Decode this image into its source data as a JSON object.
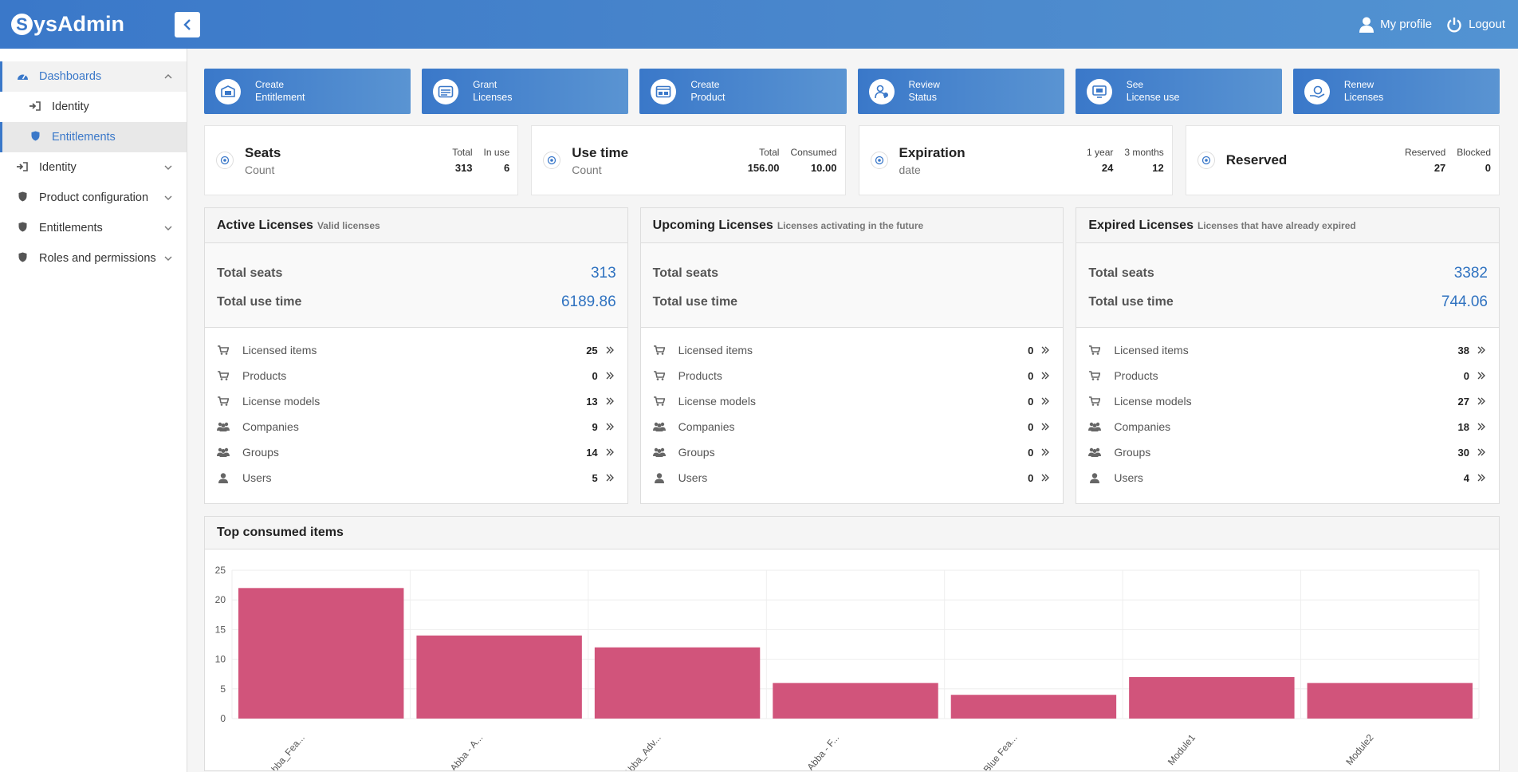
{
  "brand": {
    "letter": "S",
    "rest": "ysAdmin"
  },
  "header": {
    "my_profile": "My profile",
    "logout": "Logout"
  },
  "sidebar": {
    "items": [
      {
        "label": "Dashboards"
      },
      {
        "label": "Identity"
      },
      {
        "label": "Entitlements"
      },
      {
        "label": "Identity"
      },
      {
        "label": "Product configuration"
      },
      {
        "label": "Entitlements"
      },
      {
        "label": "Roles and permissions"
      }
    ]
  },
  "quick_actions": [
    {
      "line1": "Create",
      "line2": "Entitlement"
    },
    {
      "line1": "Grant",
      "line2": "Licenses"
    },
    {
      "line1": "Create",
      "line2": "Product"
    },
    {
      "line1": "Review",
      "line2": "Status"
    },
    {
      "line1": "See",
      "line2": "License use"
    },
    {
      "line1": "Renew",
      "line2": "Licenses"
    }
  ],
  "stats": [
    {
      "title": "Seats",
      "sub": "Count",
      "c1_label": "Total",
      "c1_value": "313",
      "c2_label": "In use",
      "c2_value": "6"
    },
    {
      "title": "Use time",
      "sub": "Count",
      "c1_label": "Total",
      "c1_value": "156.00",
      "c2_label": "Consumed",
      "c2_value": "10.00"
    },
    {
      "title": "Expiration",
      "sub": "date",
      "c1_label": "1 year",
      "c1_value": "24",
      "c2_label": "3 months",
      "c2_value": "12"
    },
    {
      "title": "Reserved",
      "sub": "",
      "c1_label": "Reserved",
      "c1_value": "27",
      "c2_label": "Blocked",
      "c2_value": "0"
    }
  ],
  "labels": {
    "total_seats": "Total seats",
    "total_use_time": "Total use time",
    "licensed_items": "Licensed items",
    "products": "Products",
    "license_models": "License models",
    "companies": "Companies",
    "groups": "Groups",
    "users": "Users"
  },
  "panels": [
    {
      "title": "Active Licenses",
      "subtitle": "Valid licenses",
      "total_seats": "313",
      "total_use_time": "6189.86",
      "counts": {
        "licensed_items": "25",
        "products": "0",
        "license_models": "13",
        "companies": "9",
        "groups": "14",
        "users": "5"
      }
    },
    {
      "title": "Upcoming Licenses",
      "subtitle": "Licenses activating in the future",
      "total_seats": "",
      "total_use_time": "",
      "counts": {
        "licensed_items": "0",
        "products": "0",
        "license_models": "0",
        "companies": "0",
        "groups": "0",
        "users": "0"
      }
    },
    {
      "title": "Expired Licenses",
      "subtitle": "Licenses that have already expired",
      "total_seats": "3382",
      "total_use_time": "744.06",
      "counts": {
        "licensed_items": "38",
        "products": "0",
        "license_models": "27",
        "companies": "18",
        "groups": "30",
        "users": "4"
      }
    }
  ],
  "chart_title": "Top consumed items",
  "chart_data": {
    "type": "bar",
    "categories": [
      "Abba_Fea...",
      "Abba - A...",
      "Abba_Adv...",
      "Abba - F...",
      "Blue Fea...",
      "Module1",
      "Module2"
    ],
    "values": [
      22,
      14,
      12,
      6,
      4,
      7,
      6
    ],
    "ylim": [
      0,
      25
    ],
    "yticks": [
      0,
      5,
      10,
      15,
      20,
      25
    ],
    "grid": true,
    "bar_color": "#d1547b"
  },
  "colors": {
    "accent": "#3a78c9",
    "value_blue": "#2f72c0"
  }
}
